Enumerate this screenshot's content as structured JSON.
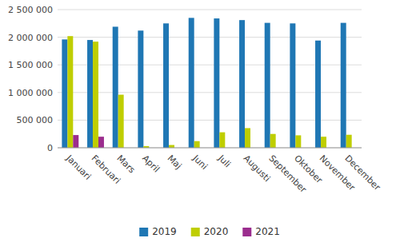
{
  "chart_data": {
    "type": "bar",
    "categories": [
      "Januari",
      "Februari",
      "Mars",
      "April",
      "Maj",
      "Juni",
      "Juli",
      "Augusti",
      "September",
      "Oktober",
      "November",
      "December"
    ],
    "series": [
      {
        "name": "2019",
        "color": "#1F77B4",
        "values": [
          1960000,
          1950000,
          2190000,
          2120000,
          2250000,
          2350000,
          2340000,
          2310000,
          2260000,
          2250000,
          1940000,
          2260000
        ]
      },
      {
        "name": "2020",
        "color": "#BFCE00",
        "values": [
          2020000,
          1920000,
          960000,
          30000,
          50000,
          120000,
          280000,
          355000,
          250000,
          225000,
          200000,
          235000
        ]
      },
      {
        "name": "2021",
        "color": "#9B2D8E",
        "values": [
          230000,
          200000,
          0,
          0,
          0,
          0,
          0,
          0,
          0,
          0,
          0,
          0
        ]
      }
    ],
    "ylim": [
      0,
      2500000
    ],
    "yticks": [
      0,
      {
        "value": 500000,
        "label": "500 000"
      },
      {
        "value": 1000000,
        "label": "1 000 000"
      },
      {
        "value": 1500000,
        "label": "1 500 000"
      },
      {
        "value": 2000000,
        "label": "2 000 000"
      },
      {
        "value": 2500000,
        "label": "2 500 000"
      }
    ],
    "grid": true,
    "legend": "bottom"
  }
}
